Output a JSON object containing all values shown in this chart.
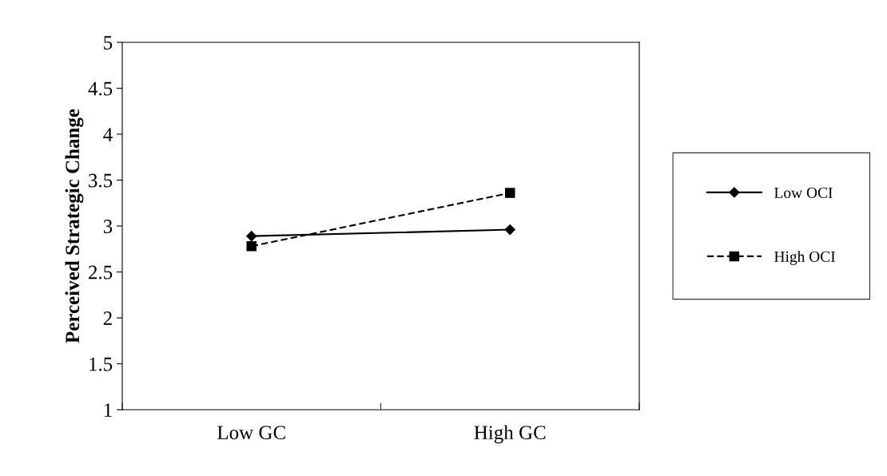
{
  "chart_data": {
    "type": "line",
    "ylabel": "Perceived Strategic Change",
    "categories": [
      "Low GC",
      "High GC"
    ],
    "series": [
      {
        "name": "Low OCI",
        "color": "#000000",
        "values": [
          2.89,
          2.96
        ],
        "marker": "diamond",
        "line_style": "solid"
      },
      {
        "name": "High OCI",
        "color": "#000000",
        "values": [
          2.78,
          3.36
        ],
        "marker": "square",
        "line_style": "dashed"
      }
    ],
    "ylim": [
      1,
      5
    ],
    "yticks": [
      1,
      1.5,
      2,
      2.5,
      3,
      3.5,
      4,
      4.5,
      5
    ],
    "grid": false,
    "legend": "right"
  }
}
